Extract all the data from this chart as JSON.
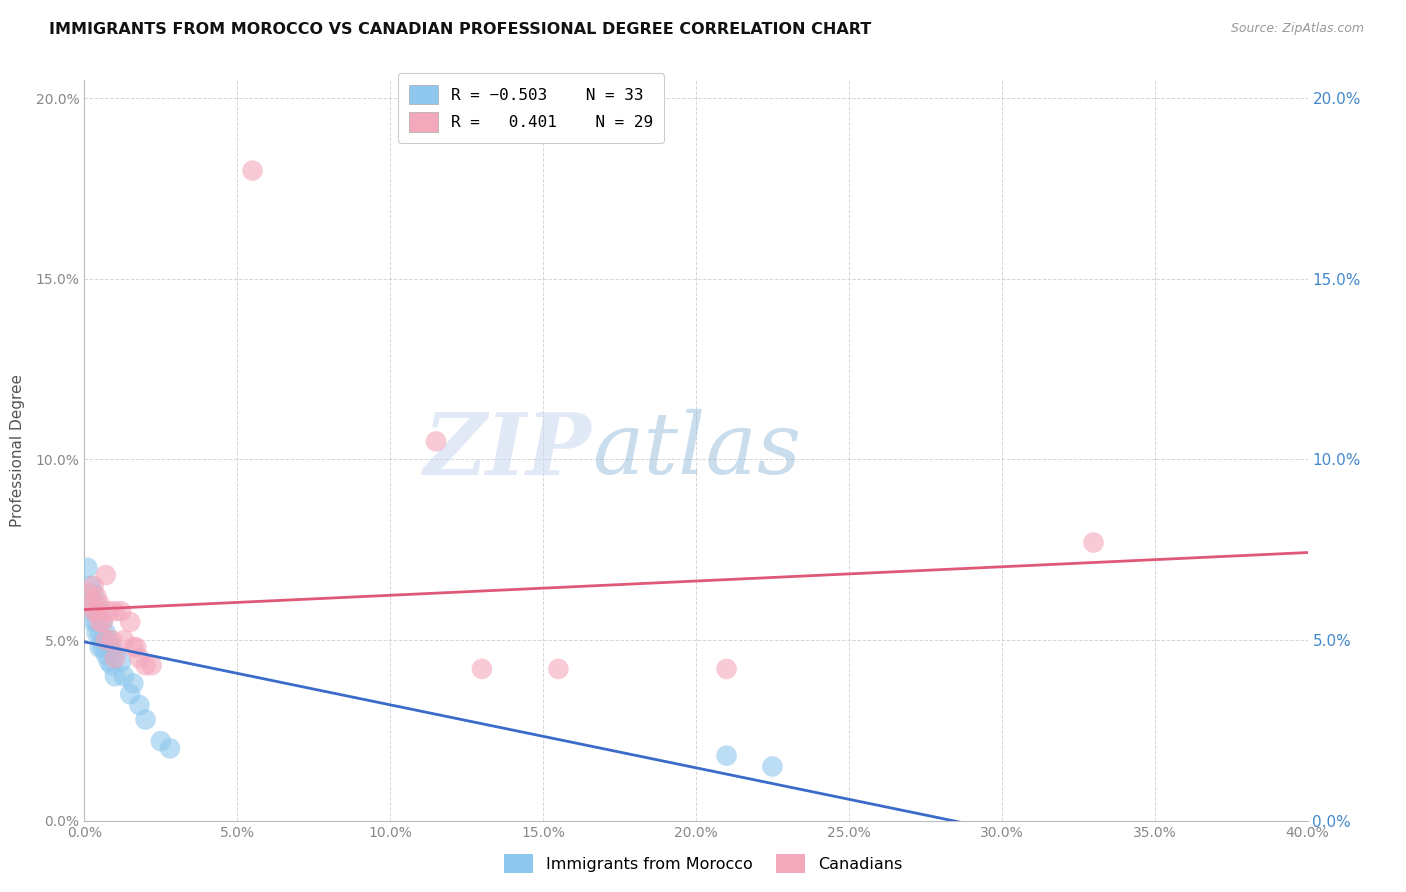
{
  "title": "IMMIGRANTS FROM MOROCCO VS CANADIAN PROFESSIONAL DEGREE CORRELATION CHART",
  "source": "Source: ZipAtlas.com",
  "ylabel": "Professional Degree",
  "x_min": 0.0,
  "x_max": 0.4,
  "y_min": 0.0,
  "y_max": 0.205,
  "blue_label": "Immigrants from Morocco",
  "pink_label": "Canadians",
  "blue_R": "-0.503",
  "blue_N": "33",
  "pink_R": "0.401",
  "pink_N": "29",
  "blue_color": "#8FC8EE",
  "pink_color": "#F4A8BC",
  "blue_line_color": "#3A6BC8",
  "pink_line_color": "#E05878",
  "blue_scatter": [
    [
      0.001,
      0.07
    ],
    [
      0.002,
      0.065
    ],
    [
      0.002,
      0.06
    ],
    [
      0.003,
      0.063
    ],
    [
      0.003,
      0.058
    ],
    [
      0.003,
      0.055
    ],
    [
      0.004,
      0.06
    ],
    [
      0.004,
      0.055
    ],
    [
      0.004,
      0.052
    ],
    [
      0.005,
      0.058
    ],
    [
      0.005,
      0.052
    ],
    [
      0.005,
      0.048
    ],
    [
      0.006,
      0.055
    ],
    [
      0.006,
      0.05
    ],
    [
      0.006,
      0.048
    ],
    [
      0.007,
      0.052
    ],
    [
      0.007,
      0.046
    ],
    [
      0.008,
      0.05
    ],
    [
      0.008,
      0.044
    ],
    [
      0.009,
      0.048
    ],
    [
      0.009,
      0.043
    ],
    [
      0.01,
      0.046
    ],
    [
      0.01,
      0.04
    ],
    [
      0.012,
      0.044
    ],
    [
      0.013,
      0.04
    ],
    [
      0.015,
      0.035
    ],
    [
      0.016,
      0.038
    ],
    [
      0.018,
      0.032
    ],
    [
      0.02,
      0.028
    ],
    [
      0.025,
      0.022
    ],
    [
      0.028,
      0.02
    ],
    [
      0.21,
      0.018
    ],
    [
      0.225,
      0.015
    ]
  ],
  "pink_scatter": [
    [
      0.001,
      0.063
    ],
    [
      0.002,
      0.06
    ],
    [
      0.003,
      0.065
    ],
    [
      0.003,
      0.058
    ],
    [
      0.004,
      0.062
    ],
    [
      0.004,
      0.058
    ],
    [
      0.005,
      0.06
    ],
    [
      0.005,
      0.055
    ],
    [
      0.006,
      0.055
    ],
    [
      0.007,
      0.068
    ],
    [
      0.007,
      0.05
    ],
    [
      0.008,
      0.058
    ],
    [
      0.009,
      0.05
    ],
    [
      0.01,
      0.058
    ],
    [
      0.01,
      0.045
    ],
    [
      0.012,
      0.058
    ],
    [
      0.013,
      0.05
    ],
    [
      0.015,
      0.055
    ],
    [
      0.016,
      0.048
    ],
    [
      0.017,
      0.048
    ],
    [
      0.018,
      0.045
    ],
    [
      0.02,
      0.043
    ],
    [
      0.022,
      0.043
    ],
    [
      0.055,
      0.18
    ],
    [
      0.115,
      0.105
    ],
    [
      0.13,
      0.042
    ],
    [
      0.155,
      0.042
    ],
    [
      0.21,
      0.042
    ],
    [
      0.33,
      0.077
    ]
  ],
  "watermark_zip": "ZIP",
  "watermark_atlas": "atlas",
  "background_color": "#FFFFFF",
  "grid_color": "#CCCCCC"
}
